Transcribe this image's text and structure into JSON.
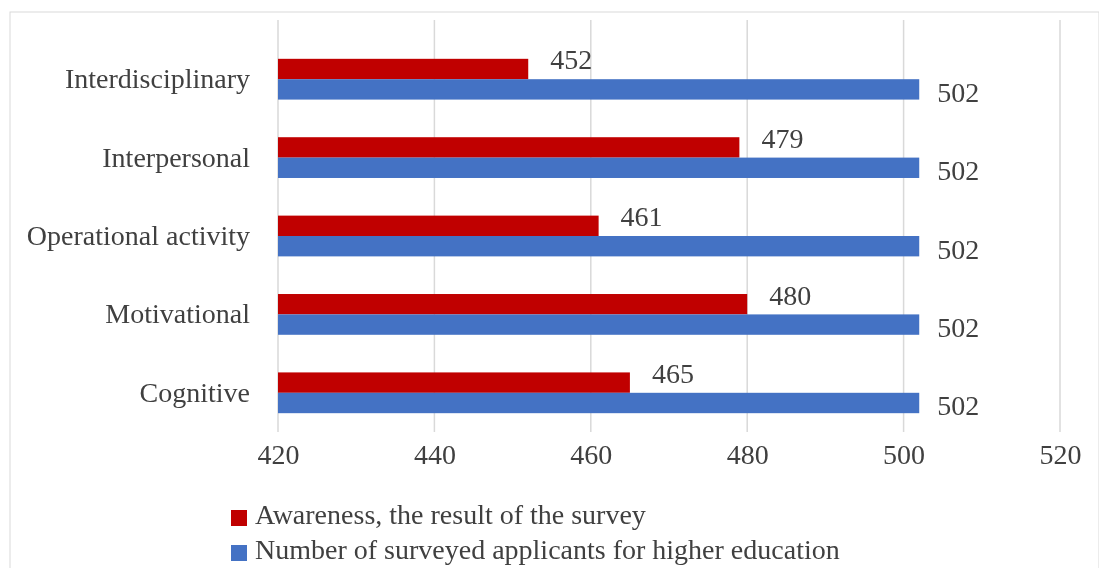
{
  "chart_data": {
    "type": "bar",
    "orientation": "horizontal",
    "categories": [
      "Interdisciplinary",
      "Interpersonal",
      "Operational activity",
      "Motivational",
      "Cognitive"
    ],
    "series": [
      {
        "name": "Awareness, the result of the survey",
        "color": "#c00000",
        "values": [
          452,
          479,
          461,
          480,
          465
        ]
      },
      {
        "name": "Number of surveyed applicants for higher education",
        "color": "#4472c4",
        "values": [
          502,
          502,
          502,
          502,
          502
        ]
      }
    ],
    "xlim": [
      420,
      520
    ],
    "xticks": [
      420,
      440,
      460,
      480,
      500,
      520
    ],
    "grid": "x",
    "legend": "bottom",
    "data_labels": true
  }
}
